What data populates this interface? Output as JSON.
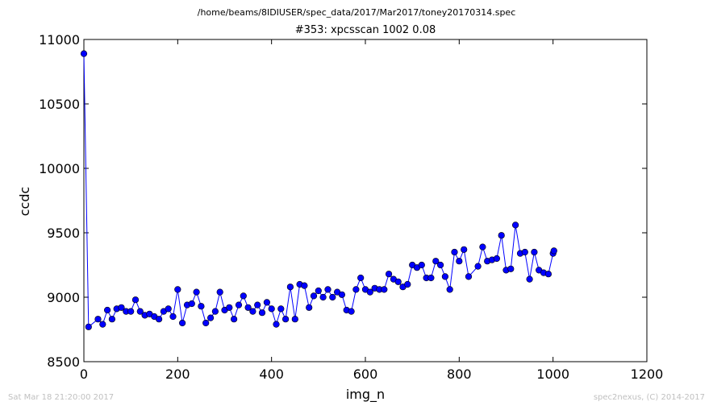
{
  "figure": {
    "supertitle": "/home/beams/8IDIUSER/spec_data/2017/Mar2017/toney20170314.spec",
    "footer_left": "Sat Mar 18 21:20:00 2017",
    "footer_right": "spec2nexus, (C) 2014-2017"
  },
  "chart_data": {
    "type": "line",
    "title": "#353: xpcsscan 1002 0.08",
    "xlabel": "img_n",
    "ylabel": "ccdc",
    "xlim": [
      0,
      1200
    ],
    "ylim": [
      8500,
      11000
    ],
    "xticks": [
      "0",
      "200",
      "400",
      "600",
      "800",
      "1000",
      "1200"
    ],
    "yticks": [
      "8500",
      "9000",
      "9500",
      "10000",
      "10500",
      "11000"
    ],
    "grid": false,
    "marker": "circle",
    "color": "#0000ff",
    "series": [
      {
        "x": [
          0,
          10,
          30,
          40,
          50,
          60,
          70,
          80,
          90,
          100,
          110,
          120,
          130,
          140,
          150,
          160,
          170,
          180,
          190,
          200,
          210,
          220,
          230,
          240,
          250,
          260,
          270,
          280,
          290,
          300,
          310,
          320,
          330,
          340,
          350,
          360,
          370,
          380,
          390,
          400,
          410,
          420,
          430,
          440,
          450,
          460,
          470,
          480,
          490,
          500,
          510,
          520,
          530,
          540,
          550,
          560,
          570,
          580,
          590,
          600,
          610,
          620,
          630,
          640,
          650,
          660,
          670,
          680,
          690,
          700,
          710,
          720,
          730,
          740,
          750,
          760,
          770,
          780,
          790,
          800,
          810,
          820,
          840,
          850,
          860,
          870,
          880,
          890,
          900,
          910,
          920,
          930,
          940,
          950,
          960,
          970,
          980,
          990,
          1000,
          1002
        ],
        "y": [
          10890,
          8770,
          8830,
          8790,
          8900,
          8830,
          8910,
          8920,
          8890,
          8890,
          8980,
          8890,
          8860,
          8870,
          8850,
          8830,
          8890,
          8910,
          8850,
          9060,
          8800,
          8940,
          8950,
          9040,
          8930,
          8800,
          8840,
          8890,
          9040,
          8900,
          8920,
          8830,
          8940,
          9010,
          8920,
          8890,
          8940,
          8880,
          8960,
          8910,
          8790,
          8910,
          8830,
          9080,
          8830,
          9100,
          9090,
          8920,
          9010,
          9050,
          9000,
          9060,
          9000,
          9040,
          9020,
          8900,
          8890,
          9060,
          9150,
          9060,
          9040,
          9070,
          9060,
          9060,
          9180,
          9140,
          9120,
          9080,
          9100,
          9250,
          9230,
          9250,
          9150,
          9150,
          9280,
          9250,
          9160,
          9060,
          9350,
          9280,
          9370,
          9160,
          9240,
          9390,
          9280,
          9290,
          9300,
          9480,
          9210,
          9220,
          9560,
          9340,
          9350,
          9140,
          9350,
          9210,
          9190,
          9180,
          9340,
          9360
        ]
      }
    ]
  }
}
